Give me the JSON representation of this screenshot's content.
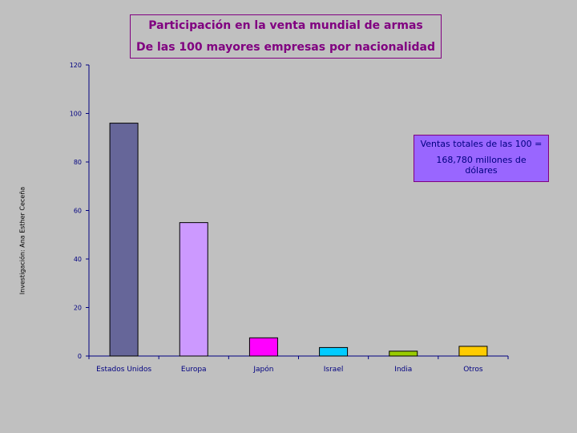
{
  "title_line1": "Participación en la venta mundial de armas",
  "title_line2": "De las 100 mayores empresas por nacionalidad",
  "side_note": "Investigación: Ana Esther Ceceña",
  "annotation_line1": "Ventas totales de las 100 =",
  "annotation_line2": "168,780 millones de dólares",
  "colors": {
    "background": "#c0c0c0",
    "title": "#800080",
    "annotation_fill": "#9966ff",
    "axis": "#000080"
  },
  "chart_data": {
    "type": "bar",
    "title": "Participación en la venta mundial de armas",
    "subtitle": "De las 100 mayores empresas por nacionalidad",
    "categories": [
      "Estados Unidos",
      "Europa",
      "Japón",
      "Israel",
      "India",
      "Otros"
    ],
    "values": [
      96,
      55,
      7.5,
      3.5,
      2,
      4
    ],
    "bar_colors": [
      "#666699",
      "#cc99ff",
      "#ff00ff",
      "#00ccff",
      "#99cc00",
      "#ffcc00"
    ],
    "ylim": [
      0,
      120
    ],
    "yticks": [
      0,
      20,
      40,
      60,
      80,
      100,
      120
    ],
    "xlabel": "",
    "ylabel": "",
    "grid": false,
    "legend": "none"
  }
}
